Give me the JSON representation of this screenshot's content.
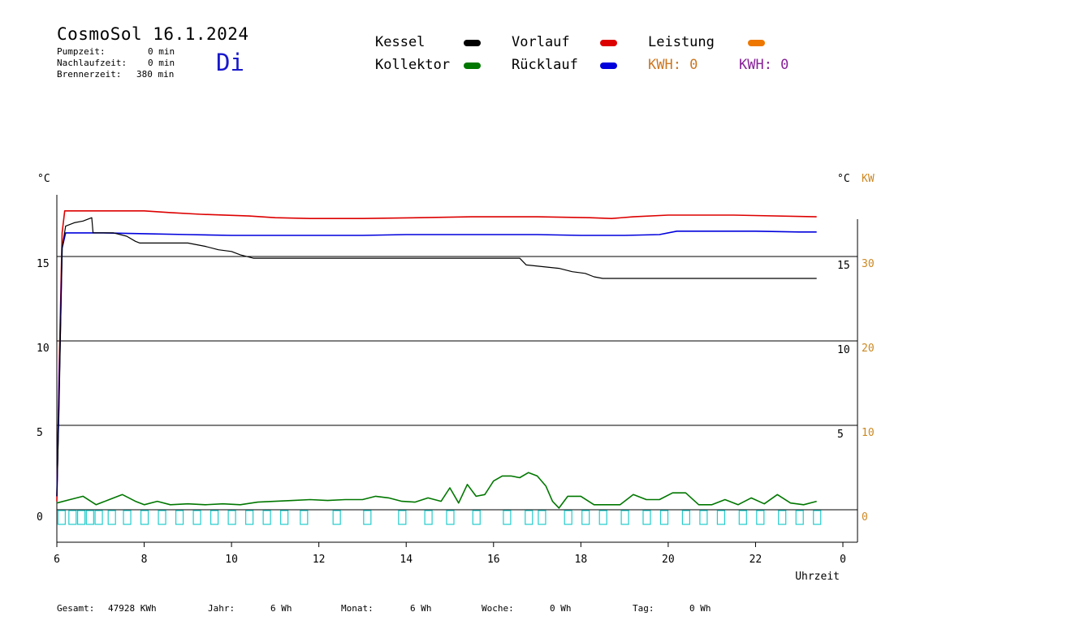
{
  "header": {
    "title": "CosmoSol 16.1.2024",
    "pumpzeit_label": "Pumpzeit:",
    "pumpzeit_value": "0 min",
    "nachlaufzeit_label": "Nachlaufzeit:",
    "nachlaufzeit_value": "0 min",
    "brennerzeit_label": "Brennerzeit:",
    "brennerzeit_value": "380 min",
    "weekday": "Di"
  },
  "legend": {
    "kessel": "Kessel",
    "kollektor": "Kollektor",
    "vorlauf": "Vorlauf",
    "ruecklauf": "Rücklauf",
    "leistung": "Leistung",
    "kwh1": "KWH: 0",
    "kwh2": "KWH: 0"
  },
  "colors": {
    "kessel": "#000000",
    "kollektor": "#007700",
    "vorlauf": "#dd0000",
    "ruecklauf": "#0000dd",
    "leistung": "#ee7700",
    "kwh1": "#cc7722",
    "kwh2": "#882299",
    "pump": "#22cccc",
    "kw_axis": "#cc8822"
  },
  "footer": {
    "gesamt_label": "Gesamt:",
    "gesamt_value": "47928 KWh",
    "jahr_label": "Jahr:",
    "jahr_value": "6 Wh",
    "monat_label": "Monat:",
    "monat_value": "6 Wh",
    "woche_label": "Woche:",
    "woche_value": "0 Wh",
    "tag_label": "Tag:",
    "tag_value": "0 Wh"
  },
  "chart_data": {
    "type": "line",
    "left_unit": "°C",
    "right_unit": "°C",
    "kw_unit": "KW",
    "xlabel": "Uhrzeit",
    "x_ticks": [
      "6",
      "8",
      "10",
      "12",
      "14",
      "16",
      "18",
      "20",
      "22",
      "0"
    ],
    "xlim": [
      6,
      24
    ],
    "left_ticks": [
      "0",
      "5",
      "10",
      "15"
    ],
    "right_ticks": [
      "5",
      "10",
      "15"
    ],
    "kw_ticks": [
      "0",
      "10",
      "20",
      "30"
    ],
    "ylim": [
      -1.5,
      18.5
    ],
    "grid_lines_y": [
      0,
      5,
      10,
      15
    ],
    "series": [
      {
        "key": "vorlauf",
        "x": [
          6,
          6.05,
          6.12,
          6.18,
          8.0,
          8.6,
          9.3,
          10.4,
          11.0,
          11.8,
          13.0,
          14.3,
          15.5,
          17.0,
          18.2,
          18.7,
          19.2,
          20.0,
          21.5,
          23.4
        ],
        "y": [
          0.5,
          8.0,
          16.4,
          17.7,
          17.7,
          17.6,
          17.5,
          17.4,
          17.3,
          17.25,
          17.25,
          17.3,
          17.35,
          17.35,
          17.3,
          17.25,
          17.35,
          17.45,
          17.45,
          17.35
        ]
      },
      {
        "key": "ruecklauf",
        "x": [
          6,
          6.05,
          6.12,
          6.2,
          7.0,
          8.0,
          9.0,
          10.0,
          11.0,
          12.0,
          13.0,
          14.0,
          15.0,
          16.0,
          17.0,
          18.0,
          18.5,
          19.0,
          19.8,
          20.2,
          21.0,
          22.0,
          23.0,
          23.4
        ],
        "y": [
          0.8,
          7.0,
          15.5,
          16.4,
          16.4,
          16.35,
          16.3,
          16.25,
          16.25,
          16.25,
          16.25,
          16.3,
          16.3,
          16.3,
          16.3,
          16.25,
          16.25,
          16.25,
          16.3,
          16.5,
          16.5,
          16.5,
          16.45,
          16.45
        ]
      },
      {
        "key": "kessel",
        "x": [
          6,
          6.05,
          6.12,
          6.2,
          6.4,
          6.6,
          6.8,
          6.83,
          7.3,
          7.6,
          7.8,
          7.9,
          8.5,
          9.0,
          9.4,
          9.7,
          10.0,
          10.2,
          10.5,
          11.0,
          12.0,
          13.0,
          14.0,
          15.0,
          16.0,
          16.6,
          16.75,
          17.5,
          17.8,
          18.1,
          18.3,
          18.5,
          20.0,
          22.0,
          23.4
        ],
        "y": [
          0.8,
          6.0,
          15.5,
          16.8,
          17.0,
          17.1,
          17.3,
          16.4,
          16.4,
          16.2,
          15.9,
          15.8,
          15.8,
          15.8,
          15.6,
          15.4,
          15.3,
          15.1,
          14.9,
          14.9,
          14.9,
          14.9,
          14.9,
          14.9,
          14.9,
          14.9,
          14.5,
          14.3,
          14.1,
          14.0,
          13.8,
          13.7,
          13.7,
          13.7,
          13.7
        ]
      },
      {
        "key": "kollektor",
        "x": [
          6.0,
          6.3,
          6.6,
          6.9,
          7.2,
          7.5,
          7.8,
          8.0,
          8.3,
          8.6,
          9.0,
          9.4,
          9.8,
          10.2,
          10.6,
          11.0,
          11.4,
          11.8,
          12.2,
          12.6,
          13.0,
          13.3,
          13.6,
          13.9,
          14.2,
          14.5,
          14.8,
          15.0,
          15.2,
          15.4,
          15.6,
          15.8,
          15.9,
          16.0,
          16.2,
          16.4,
          16.6,
          16.8,
          17.0,
          17.2,
          17.35,
          17.5,
          17.7,
          18.0,
          18.3,
          18.6,
          18.9,
          19.2,
          19.5,
          19.8,
          20.1,
          20.4,
          20.7,
          21.0,
          21.3,
          21.6,
          21.9,
          22.2,
          22.5,
          22.8,
          23.1,
          23.4
        ],
        "y": [
          0.4,
          0.6,
          0.8,
          0.3,
          0.6,
          0.9,
          0.5,
          0.3,
          0.5,
          0.3,
          0.35,
          0.3,
          0.35,
          0.3,
          0.45,
          0.5,
          0.55,
          0.6,
          0.55,
          0.6,
          0.6,
          0.8,
          0.7,
          0.5,
          0.45,
          0.7,
          0.5,
          1.3,
          0.4,
          1.5,
          0.8,
          0.9,
          1.3,
          1.7,
          2.0,
          2.0,
          1.9,
          2.2,
          2.0,
          1.4,
          0.5,
          0.1,
          0.8,
          0.8,
          0.3,
          0.3,
          0.3,
          0.9,
          0.6,
          0.6,
          1.0,
          1.0,
          0.3,
          0.3,
          0.6,
          0.3,
          0.7,
          0.35,
          0.9,
          0.4,
          0.3,
          0.5
        ]
      },
      {
        "key": "pump",
        "x": [
          6.1,
          6.35,
          6.55,
          6.75,
          6.95,
          7.25,
          7.6,
          8.0,
          8.4,
          8.8,
          9.2,
          9.6,
          10.0,
          10.4,
          10.8,
          11.2,
          11.65,
          12.4,
          13.1,
          13.9,
          14.5,
          15.0,
          15.6,
          16.3,
          16.8,
          17.1,
          17.7,
          18.1,
          18.5,
          19.0,
          19.5,
          19.9,
          20.4,
          20.8,
          21.2,
          21.7,
          22.1,
          22.6,
          23.0,
          23.4
        ],
        "y": [
          0,
          0,
          0,
          0,
          0,
          0,
          0,
          0,
          0,
          0,
          0,
          0,
          0,
          0,
          0,
          0,
          0,
          0,
          0,
          0,
          0,
          0,
          0,
          0,
          0,
          0,
          0,
          0,
          0,
          0,
          0,
          0,
          0,
          0,
          0,
          0,
          0,
          0,
          0,
          0
        ]
      }
    ]
  }
}
